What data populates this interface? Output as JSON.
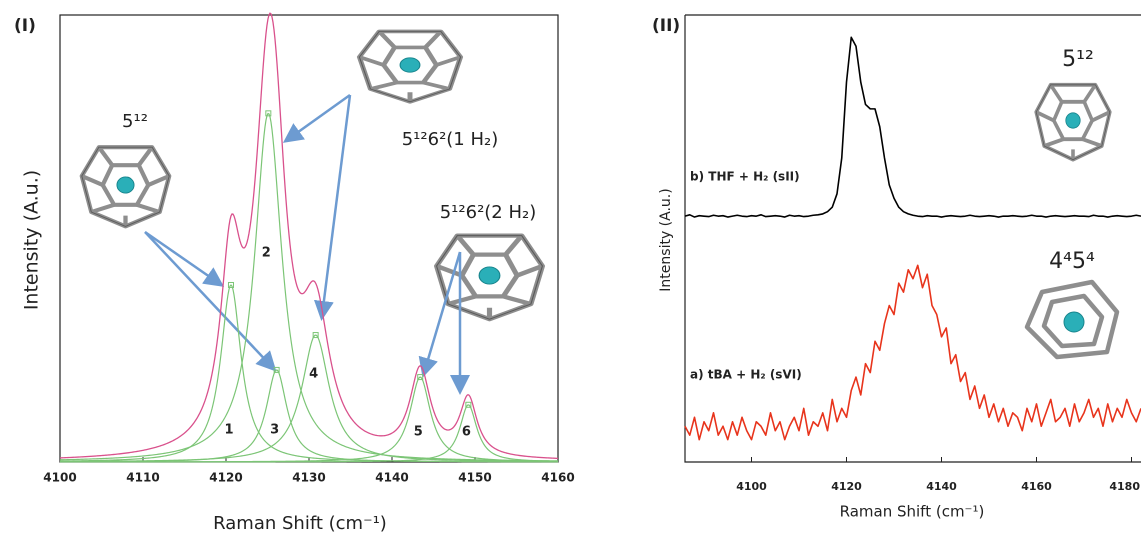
{
  "chart_data": [
    {
      "type": "peak-fit",
      "panel_label": "(I)",
      "xlabel": "Raman Shift (cm⁻¹)",
      "ylabel": "Intensity (A.u.)",
      "xlim": [
        4100,
        4160
      ],
      "xticks": [
        4100,
        4110,
        4120,
        4130,
        4140,
        4150,
        4160
      ],
      "ylim": [
        0,
        100
      ],
      "component_color": "#7cc576",
      "fit_color": "#d9518c",
      "peaks": [
        {
          "label": "1",
          "center": 4120.6,
          "height": 39.6,
          "fwhm": 3
        },
        {
          "label": "2",
          "center": 4125.1,
          "height": 78,
          "fwhm": 4
        },
        {
          "label": "3",
          "center": 4126.1,
          "height": 20.6,
          "fwhm": 3
        },
        {
          "label": "4",
          "center": 4130.8,
          "height": 28.4,
          "fwhm": 4
        },
        {
          "label": "5",
          "center": 4143.4,
          "height": 19,
          "fwhm": 3
        },
        {
          "label": "6",
          "center": 4149.2,
          "height": 12.8,
          "fwhm": 2.5
        }
      ],
      "annotations": [
        {
          "text": "5¹²"
        },
        {
          "text": "5¹²6²(1 H₂)"
        },
        {
          "text": "5¹²6²(2 H₂)"
        }
      ]
    },
    {
      "type": "line",
      "panel_label": "(II)",
      "xlabel": "Raman Shift (cm⁻¹)",
      "ylabel": "Intensity (A.u.)",
      "xlim": [
        4086,
        4182
      ],
      "xticks": [
        4100,
        4120,
        4140,
        4160,
        4180
      ],
      "ylim": [
        0,
        100
      ],
      "x": [
        4086,
        4087,
        4088,
        4089,
        4090,
        4091,
        4092,
        4093,
        4094,
        4095,
        4096,
        4097,
        4098,
        4099,
        4100,
        4101,
        4102,
        4103,
        4104,
        4105,
        4106,
        4107,
        4108,
        4109,
        4110,
        4111,
        4112,
        4113,
        4114,
        4115,
        4116,
        4117,
        4118,
        4119,
        4120,
        4121,
        4122,
        4123,
        4124,
        4125,
        4126,
        4127,
        4128,
        4129,
        4130,
        4131,
        4132,
        4133,
        4134,
        4135,
        4136,
        4137,
        4138,
        4139,
        4140,
        4141,
        4142,
        4143,
        4144,
        4145,
        4146,
        4147,
        4148,
        4149,
        4150,
        4151,
        4152,
        4153,
        4154,
        4155,
        4156,
        4157,
        4158,
        4159,
        4160,
        4161,
        4162,
        4163,
        4164,
        4165,
        4166,
        4167,
        4168,
        4169,
        4170,
        4171,
        4172,
        4173,
        4174,
        4175,
        4176,
        4177,
        4178,
        4179,
        4180,
        4181,
        4182
      ],
      "series": [
        {
          "name": "b) THF + H₂ (sII)",
          "color": "#000000",
          "values": [
            55,
            55.3,
            54.8,
            55.1,
            55,
            54.9,
            55.2,
            55,
            55.1,
            54.8,
            55,
            55.2,
            55,
            54.9,
            55.1,
            55,
            55.3,
            54.9,
            55,
            55.1,
            55,
            54.8,
            55.2,
            55,
            55.1,
            54.9,
            55,
            55.2,
            55.3,
            55.5,
            56,
            57,
            60,
            68,
            85,
            95,
            93,
            85,
            80,
            79,
            79,
            75,
            68,
            62,
            59,
            57,
            56,
            55.5,
            55.2,
            55,
            54.9,
            55.1,
            55,
            55,
            54.8,
            55,
            55.1,
            55,
            54.9,
            55,
            55.2,
            55,
            54.9,
            55,
            55.1,
            55,
            54.8,
            55,
            55,
            55.1,
            55,
            54.9,
            55,
            55.2,
            55,
            55,
            54.8,
            55,
            55.1,
            55,
            54.9,
            55,
            55.1,
            55,
            55,
            54.9,
            55.2,
            55,
            55,
            54.8,
            55,
            55.1,
            55,
            54.9,
            55,
            55.2,
            55
          ]
        },
        {
          "name": "a) tBA + H₂ (sVI)",
          "color": "#e8341c",
          "values": [
            8,
            6,
            10,
            5,
            9,
            7,
            11,
            6,
            8,
            5,
            9,
            6,
            10,
            7,
            5,
            9,
            8,
            6,
            11,
            7,
            9,
            5,
            8,
            10,
            7,
            12,
            6,
            9,
            8,
            11,
            7,
            14,
            9,
            12,
            10,
            16,
            19,
            15,
            22,
            20,
            27,
            25,
            31,
            35,
            33,
            40,
            38,
            43,
            41,
            44,
            39,
            42,
            35,
            33,
            28,
            30,
            22,
            24,
            18,
            20,
            14,
            17,
            12,
            15,
            10,
            13,
            9,
            12,
            8,
            11,
            10,
            7,
            12,
            9,
            13,
            8,
            11,
            14,
            9,
            10,
            12,
            8,
            13,
            9,
            11,
            14,
            10,
            12,
            8,
            13,
            9,
            12,
            10,
            14,
            11,
            9,
            12
          ]
        }
      ],
      "annotations": [
        {
          "text": "5¹²"
        },
        {
          "text": "4⁴5⁴"
        }
      ]
    }
  ]
}
